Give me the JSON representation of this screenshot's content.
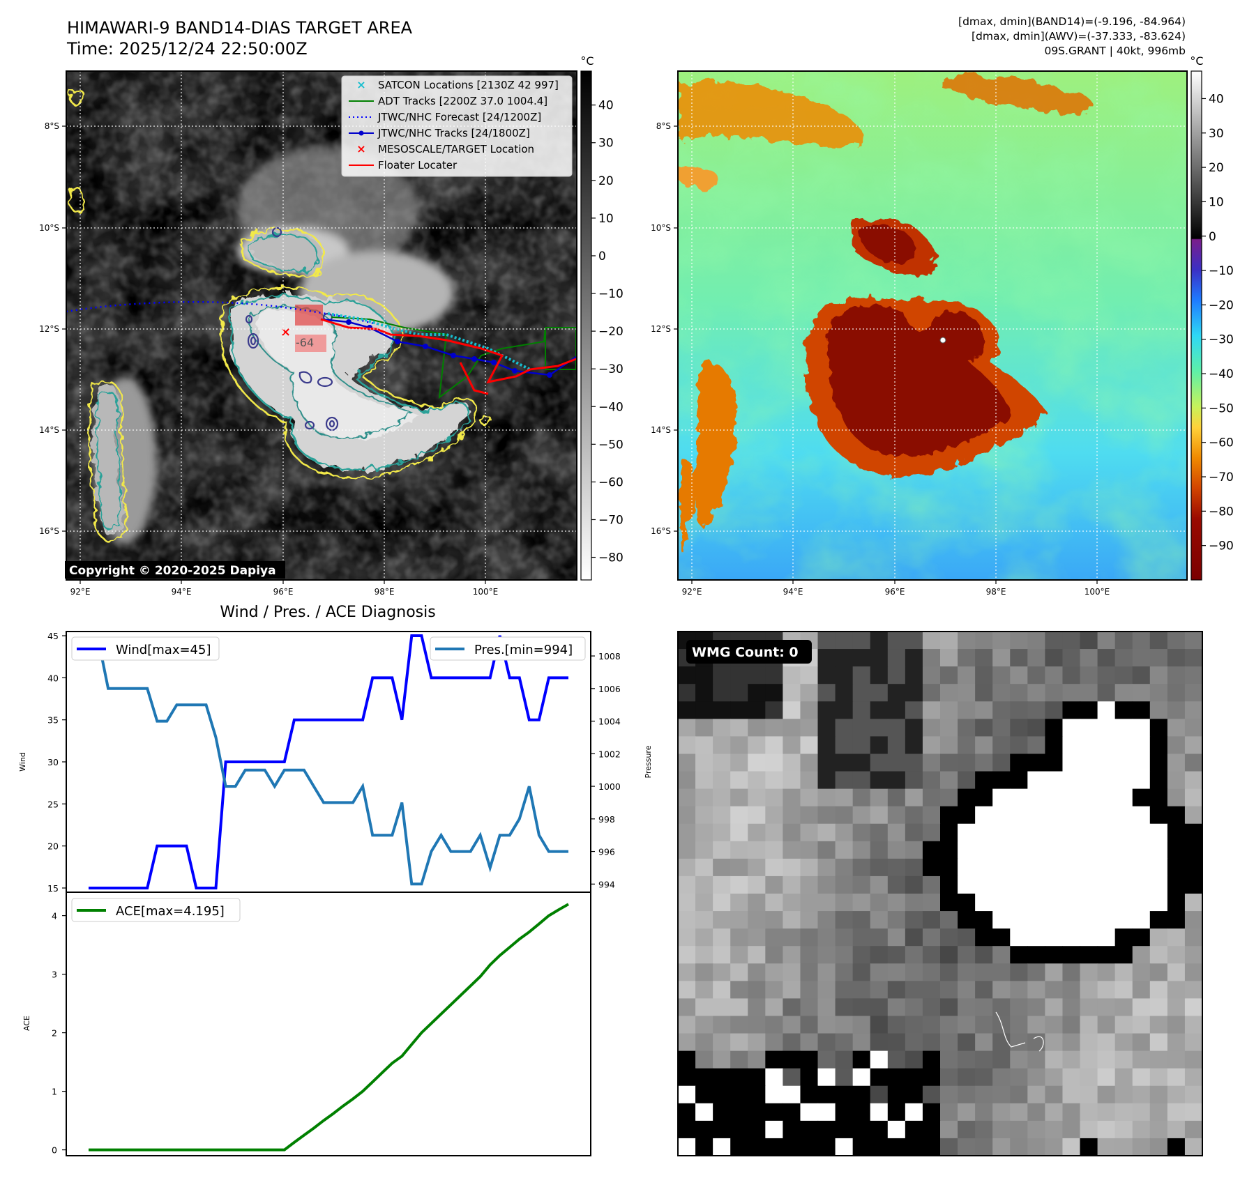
{
  "header": {
    "title_line1": "HIMAWARI-9 BAND14-DIAS TARGET AREA",
    "title_line2": "Time: 2025/12/24 22:50:00Z",
    "info_line1": "[dmax, dmin](BAND14)=(-9.196, -84.964)",
    "info_line2": "[dmax, dmin](AWV)=(-37.333, -83.624)",
    "info_line3": "09S.GRANT | 40kt, 996mb"
  },
  "map": {
    "lat_ticks": [
      "8°S",
      "10°S",
      "12°S",
      "14°S",
      "16°S"
    ],
    "lon_ticks": [
      "92°E",
      "94°E",
      "96°E",
      "98°E",
      "100°E"
    ],
    "copyright": "Copyright © 2020-2025 Dapiya",
    "contour_label": "-64",
    "legend": [
      {
        "label": "SATCON Locations [2130Z 42 997]",
        "color": "#17becf",
        "marker": "x"
      },
      {
        "label": "ADT Tracks [2200Z 37.0 1004.4]",
        "color": "#008000",
        "marker": "line"
      },
      {
        "label": "JTWC/NHC Forecast [24/1200Z]",
        "color": "#0000ff",
        "marker": "dotted"
      },
      {
        "label": "JTWC/NHC Tracks [24/1800Z]",
        "color": "#0000cc",
        "marker": "dot-line"
      },
      {
        "label": "MESOSCALE/TARGET Location",
        "color": "#ff0000",
        "marker": "x"
      },
      {
        "label": "Floater Locater",
        "color": "#ff0000",
        "marker": "line"
      }
    ]
  },
  "colorbar_gray": {
    "unit": "°C",
    "ticks": [
      "40",
      "30",
      "20",
      "10",
      "0",
      "−10",
      "−20",
      "−30",
      "−40",
      "−50",
      "−60",
      "−70",
      "−80"
    ]
  },
  "colorbar_color": {
    "unit": "°C",
    "ticks": [
      "40",
      "30",
      "20",
      "10",
      "0",
      "−10",
      "−20",
      "−30",
      "−40",
      "−50",
      "−60",
      "−70",
      "−80",
      "−90"
    ]
  },
  "wmg": {
    "label": "WMG Count: 0"
  },
  "chart_data": [
    {
      "type": "line",
      "title": "Wind / Pres. / ACE Diagnosis",
      "ylabel": "Wind",
      "ylabel_right": "Pressure",
      "ylim": [
        14.5,
        45.5
      ],
      "ylim_right": [
        993.5,
        1009.5
      ],
      "yticks": [
        15,
        20,
        25,
        30,
        35,
        40,
        45
      ],
      "yticks_right": [
        994,
        996,
        998,
        1000,
        1002,
        1004,
        1006,
        1008
      ],
      "series": [
        {
          "name": "Wind[max=45]",
          "color": "#0000ff",
          "axis": "left",
          "values": [
            15,
            15,
            15,
            15,
            15,
            15,
            15,
            20,
            20,
            20,
            20,
            15,
            15,
            15,
            30,
            30,
            30,
            30,
            30,
            30,
            30,
            35,
            35,
            35,
            35,
            35,
            35,
            35,
            35,
            40,
            40,
            40,
            35,
            45,
            45,
            40,
            40,
            40,
            40,
            40,
            40,
            40,
            45,
            40,
            40,
            35,
            35,
            40,
            40,
            40
          ]
        },
        {
          "name": "Pres.[min=994]",
          "color": "#1f77b4",
          "axis": "right",
          "values": [
            1009,
            1009,
            1006,
            1006,
            1006,
            1006,
            1006,
            1004,
            1004,
            1005,
            1005,
            1005,
            1005,
            1003,
            1000,
            1000,
            1001,
            1001,
            1001,
            1000,
            1001,
            1001,
            1001,
            1000,
            999,
            999,
            999,
            999,
            1000,
            997,
            997,
            997,
            999,
            994,
            994,
            996,
            997,
            996,
            996,
            996,
            997,
            995,
            997,
            997,
            998,
            1000,
            997,
            996,
            996,
            996
          ]
        }
      ]
    },
    {
      "type": "line",
      "ylabel": "ACE",
      "ylim": [
        -0.1,
        4.4
      ],
      "yticks": [
        0,
        1,
        2,
        3,
        4
      ],
      "series": [
        {
          "name": "ACE[max=4.195]",
          "color": "#008000",
          "values": [
            0,
            0,
            0,
            0,
            0,
            0,
            0,
            0,
            0,
            0,
            0,
            0,
            0,
            0,
            0,
            0,
            0,
            0,
            0,
            0,
            0,
            0.127,
            0.25,
            0.37,
            0.5,
            0.62,
            0.75,
            0.87,
            1.0,
            1.16,
            1.32,
            1.48,
            1.6,
            1.8,
            2.0,
            2.16,
            2.32,
            2.48,
            2.64,
            2.8,
            2.96,
            3.16,
            3.32,
            3.46,
            3.6,
            3.72,
            3.86,
            4.0,
            4.1,
            4.195
          ]
        }
      ]
    }
  ]
}
